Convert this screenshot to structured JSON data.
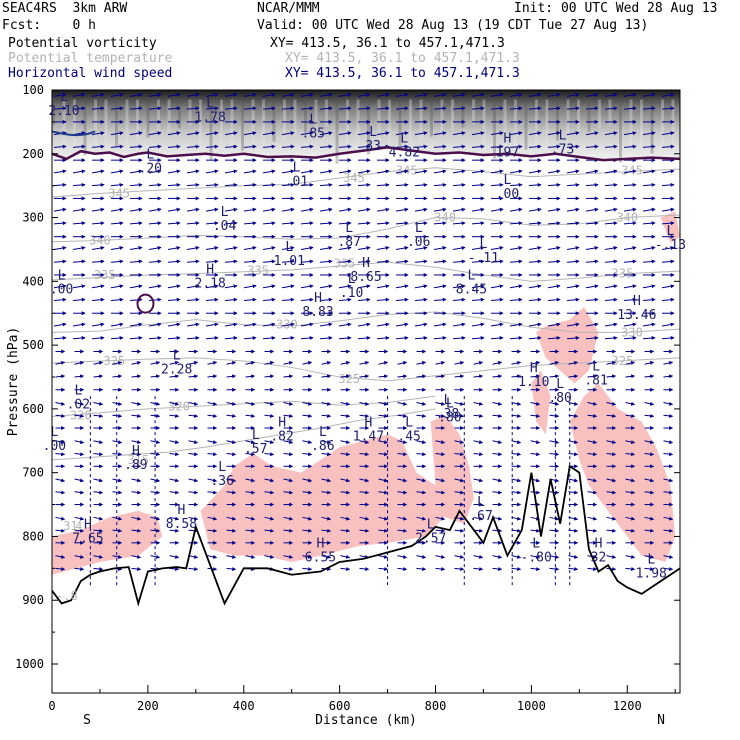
{
  "header": {
    "model": "SEAC4RS  3km ARW",
    "org": "NCAR/MMM",
    "init": "Init: 00 UTC Wed 28 Aug 13",
    "fcst": "Fcst:    0 h",
    "valid": "Valid: 00 UTC Wed 28 Aug 13 (19 CDT Tue 27 Aug 13)",
    "fields": [
      {
        "name": "Potential vorticity",
        "xy": "XY= 413.5, 36.1 to 457.1,471.3",
        "color": "#000000"
      },
      {
        "name": "Potential temperature",
        "xy": "XY= 413.5, 36.1 to 457.1,471.3",
        "color": "#b4b4b4"
      },
      {
        "name": "Horizontal wind speed",
        "xy": "XY= 413.5, 36.1 to 457.1,471.3",
        "color": "#000080"
      }
    ]
  },
  "chart_data": {
    "type": "cross-section",
    "xlabel": "Distance (km)",
    "ylabel": "Pressure (hPa)",
    "xlim": [
      0,
      1310
    ],
    "ylim": [
      1050,
      100
    ],
    "x_ticks": [
      0,
      200,
      400,
      600,
      800,
      1000,
      1200
    ],
    "y_ticks": [
      100,
      200,
      300,
      400,
      500,
      600,
      700,
      800,
      900,
      1000
    ],
    "endpoint_labels": {
      "left": "S",
      "right": "N"
    },
    "theta_contours": [
      {
        "label": "315",
        "x": [
          0,
          80,
          160,
          240,
          320,
          400,
          480,
          560,
          640,
          720,
          800
        ],
        "p": [
          680,
          676,
          672,
          668,
          660,
          650,
          640,
          630,
          618,
          610,
          600
        ]
      },
      {
        "label": "320",
        "x": [
          0,
          100,
          200,
          300,
          400,
          500,
          600,
          700,
          800
        ],
        "p": [
          612,
          606,
          600,
          596,
          592,
          588,
          594,
          590,
          580
        ]
      },
      {
        "label": "325",
        "x": [
          0,
          100,
          200,
          300,
          400,
          500,
          600,
          700,
          800,
          900,
          1000,
          1100,
          1310
        ],
        "p": [
          528,
          525,
          522,
          520,
          525,
          535,
          550,
          556,
          548,
          540,
          532,
          528,
          520
        ]
      },
      {
        "label": "330",
        "x": [
          0,
          100,
          200,
          300,
          400,
          500,
          600,
          700,
          800,
          900,
          1000,
          1100,
          1200,
          1310
        ],
        "p": [
          480,
          478,
          468,
          460,
          468,
          470,
          462,
          452,
          448,
          458,
          472,
          480,
          480,
          475
        ]
      },
      {
        "label": "335",
        "x": [
          0,
          100,
          200,
          300,
          400,
          500,
          600,
          700,
          800,
          900,
          1000,
          1100,
          1200,
          1310
        ],
        "p": [
          398,
          394,
          390,
          388,
          385,
          382,
          376,
          370,
          378,
          390,
          400,
          395,
          388,
          384
        ]
      },
      {
        "label": "340",
        "x": [
          0,
          100,
          200,
          300,
          400,
          500,
          600,
          700,
          800,
          900,
          1000,
          1100,
          1200,
          1310
        ],
        "p": [
          338,
          336,
          332,
          328,
          330,
          334,
          332,
          318,
          300,
          302,
          312,
          310,
          300,
          296
        ]
      },
      {
        "label": "345",
        "x": [
          0,
          100,
          200,
          300,
          400,
          500,
          600,
          700,
          800,
          900,
          1000,
          1100,
          1200,
          1310
        ],
        "p": [
          268,
          262,
          258,
          254,
          250,
          248,
          238,
          228,
          222,
          228,
          236,
          232,
          228,
          224
        ]
      }
    ],
    "theta_labels": [
      {
        "text": "315",
        "x": 180,
        "p": 680
      },
      {
        "text": "320",
        "x": 265,
        "p": 596
      },
      {
        "text": "320",
        "x": 60,
        "p": 610
      },
      {
        "text": "325",
        "x": 130,
        "p": 525
      },
      {
        "text": "325",
        "x": 620,
        "p": 553
      },
      {
        "text": "325",
        "x": 1190,
        "p": 525
      },
      {
        "text": "330",
        "x": 490,
        "p": 468
      },
      {
        "text": "330",
        "x": 1210,
        "p": 480
      },
      {
        "text": "335",
        "x": 110,
        "p": 390
      },
      {
        "text": "335",
        "x": 430,
        "p": 383
      },
      {
        "text": "335",
        "x": 610,
        "p": 372
      },
      {
        "text": "335",
        "x": 1190,
        "p": 388
      },
      {
        "text": "340",
        "x": 100,
        "p": 336
      },
      {
        "text": "340",
        "x": 820,
        "p": 300
      },
      {
        "text": "340",
        "x": 1200,
        "p": 300
      },
      {
        "text": "345",
        "x": 140,
        "p": 262
      },
      {
        "text": "345",
        "x": 630,
        "p": 238
      },
      {
        "text": "345",
        "x": 740,
        "p": 226
      },
      {
        "text": "345",
        "x": 1210,
        "p": 226
      }
    ],
    "pv_extrema": [
      {
        "kind": "L",
        "value": "2.10",
        "x": 25,
        "p": 130
      },
      {
        "kind": "L",
        "value": "1.78",
        "x": 330,
        "p": 140
      },
      {
        "kind": "L",
        "value": ".85",
        "x": 545,
        "p": 165
      },
      {
        "kind": "L",
        "value": "33",
        "x": 670,
        "p": 185
      },
      {
        "kind": "L",
        "value": "4.82",
        "x": 735,
        "p": 195
      },
      {
        "kind": "H",
        "value": "197",
        "x": 950,
        "p": 195
      },
      {
        "kind": "L",
        "value": ".73",
        "x": 1065,
        "p": 190
      },
      {
        "kind": "L",
        "value": ".20",
        "x": 205,
        "p": 220
      },
      {
        "kind": "L",
        "value": ".01",
        "x": 510,
        "p": 240
      },
      {
        "kind": "L",
        "value": ".00",
        "x": 950,
        "p": 260
      },
      {
        "kind": "L",
        "value": ".04",
        "x": 360,
        "p": 310
      },
      {
        "kind": "L",
        "value": ".87",
        "x": 620,
        "p": 335
      },
      {
        "kind": "L",
        "value": ".06",
        "x": 765,
        "p": 335
      },
      {
        "kind": "L",
        "value": "-.13",
        "x": 1290,
        "p": 340
      },
      {
        "kind": "L",
        "value": "1.01",
        "x": 495,
        "p": 365
      },
      {
        "kind": "L",
        "value": "-.11",
        "x": 900,
        "p": 360
      },
      {
        "kind": "L",
        "value": ".00",
        "x": 20,
        "p": 410
      },
      {
        "kind": "H",
        "value": "2.18",
        "x": 330,
        "p": 400
      },
      {
        "kind": "H",
        "value": "8.65",
        "x": 655,
        "p": 390
      },
      {
        "kind": "L",
        "value": ".10",
        "x": 625,
        "p": 415
      },
      {
        "kind": "L",
        "value": "8.45",
        "x": 875,
        "p": 410
      },
      {
        "kind": "H",
        "value": "8.83",
        "x": 555,
        "p": 445
      },
      {
        "kind": "H",
        "value": "13.46",
        "x": 1220,
        "p": 450
      },
      {
        "kind": "L",
        "value": "2.28",
        "x": 260,
        "p": 535
      },
      {
        "kind": "H",
        "value": "1.10",
        "x": 1005,
        "p": 555
      },
      {
        "kind": "L",
        "value": ".81",
        "x": 1135,
        "p": 552
      },
      {
        "kind": "L",
        "value": ".02",
        "x": 55,
        "p": 590
      },
      {
        "kind": "L",
        "value": ".80",
        "x": 1060,
        "p": 580
      },
      {
        "kind": "L",
        "value": ".38",
        "x": 825,
        "p": 605
      },
      {
        "kind": "L",
        "value": ".80",
        "x": 830,
        "p": 610
      },
      {
        "kind": "H",
        "value": ".82",
        "x": 480,
        "p": 640
      },
      {
        "kind": "H",
        "value": "1.47",
        "x": 660,
        "p": 640
      },
      {
        "kind": "L",
        "value": ".45",
        "x": 745,
        "p": 640
      },
      {
        "kind": "L",
        "value": ".57",
        "x": 425,
        "p": 660
      },
      {
        "kind": "L",
        "value": ".86",
        "x": 565,
        "p": 655
      },
      {
        "kind": "L",
        "value": ".00",
        "x": 5,
        "p": 655
      },
      {
        "kind": "H",
        "value": ".89",
        "x": 175,
        "p": 685
      },
      {
        "kind": "L",
        "value": ".36",
        "x": 355,
        "p": 710
      },
      {
        "kind": "H",
        "value": "8.58",
        "x": 270,
        "p": 777
      },
      {
        "kind": "H",
        "value": "7.65",
        "x": 75,
        "p": 800
      },
      {
        "kind": "L",
        "value": ".67",
        "x": 895,
        "p": 765
      },
      {
        "kind": "L",
        "value": "2.57",
        "x": 790,
        "p": 800
      },
      {
        "kind": "H",
        "value": "6.55",
        "x": 560,
        "p": 830
      },
      {
        "kind": "L",
        "value": "-.80",
        "x": 1010,
        "p": 830
      },
      {
        "kind": "H",
        "value": "32",
        "x": 1140,
        "p": 830
      },
      {
        "kind": "L",
        "value": "1.98",
        "x": 1250,
        "p": 855
      }
    ],
    "side_labels": [
      {
        "text": "31",
        "x": 15,
        "p": 790
      },
      {
        "text": "4",
        "x": 40,
        "p": 790
      },
      {
        "text": "-.8",
        "x": 0,
        "p": 900
      }
    ],
    "terrain": {
      "x": [
        0,
        20,
        40,
        60,
        80,
        100,
        130,
        160,
        180,
        200,
        230,
        260,
        280,
        300,
        330,
        360,
        400,
        450,
        500,
        560,
        600,
        650,
        700,
        750,
        780,
        800,
        830,
        850,
        870,
        900,
        920,
        950,
        980,
        1000,
        1020,
        1040,
        1060,
        1080,
        1100,
        1120,
        1140,
        1160,
        1180,
        1200,
        1230,
        1260,
        1290,
        1310
      ],
      "p": [
        885,
        905,
        900,
        870,
        860,
        855,
        850,
        848,
        905,
        855,
        850,
        848,
        850,
        785,
        845,
        905,
        850,
        850,
        860,
        855,
        840,
        835,
        825,
        815,
        800,
        785,
        790,
        760,
        780,
        810,
        770,
        830,
        790,
        700,
        800,
        710,
        780,
        690,
        700,
        820,
        855,
        845,
        870,
        880,
        890,
        875,
        860,
        850
      ]
    },
    "tropopause": {
      "x": [
        0,
        30,
        60,
        90,
        120,
        150,
        180,
        200,
        240,
        280,
        320,
        360,
        400,
        450,
        500,
        550,
        600,
        650,
        700,
        750,
        800,
        850,
        900,
        950,
        1000,
        1050,
        1100,
        1150,
        1200,
        1250,
        1310
      ],
      "p": [
        200,
        208,
        196,
        200,
        198,
        205,
        200,
        198,
        204,
        202,
        200,
        203,
        200,
        205,
        204,
        206,
        200,
        195,
        190,
        195,
        200,
        198,
        202,
        200,
        204,
        200,
        205,
        210,
        208,
        206,
        208
      ]
    },
    "barbs_summary": "Horizontal wind vectors on a regular grid; eastward flow aloft, weak near-surface"
  }
}
